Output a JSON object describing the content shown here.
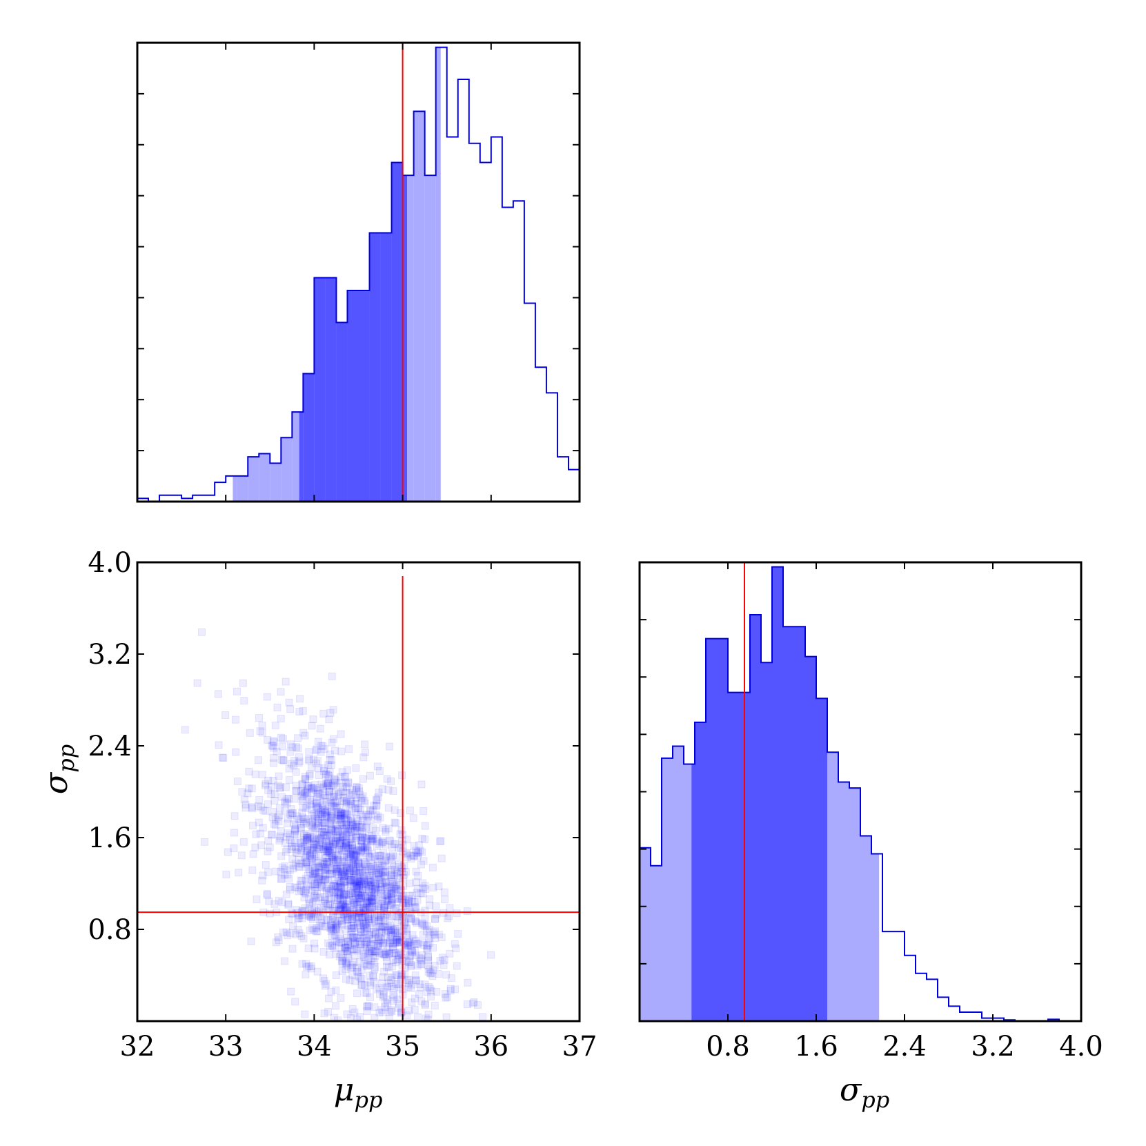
{
  "chart_data": [
    {
      "id": "mu_hist",
      "type": "histogram",
      "xlim": [
        32,
        37
      ],
      "ylim": [
        0,
        71
      ],
      "bin_width": 0.125,
      "bin_start": 32,
      "counts": [
        0.5,
        0,
        1,
        1,
        0.5,
        1,
        1,
        3,
        4,
        4,
        7,
        7.5,
        6,
        10,
        14,
        20,
        35,
        35,
        28,
        33,
        33,
        42,
        42,
        53,
        51,
        61,
        51,
        71,
        57,
        66,
        56,
        53,
        57,
        46,
        47,
        31,
        21,
        17,
        7,
        5,
        5,
        2,
        2.5,
        1,
        0.25,
        0,
        0,
        0,
        0,
        0,
        0,
        0,
        0,
        0,
        0,
        0,
        0,
        0,
        0,
        0
      ],
      "intervals": {
        "outer": [
          33.08,
          35.43
        ],
        "inner": [
          33.83,
          35.05
        ]
      },
      "truth": 35.0,
      "x_ticks": [
        32,
        33,
        34,
        35,
        36,
        37
      ],
      "y_tick_count": 8,
      "show_tick_labels": false
    },
    {
      "id": "sigma_hist",
      "type": "histogram",
      "xlim": [
        0,
        4
      ],
      "ylim": [
        0,
        76
      ],
      "bin_width": 0.1,
      "bin_start": 0,
      "counts": [
        29,
        26,
        44,
        46,
        43,
        50,
        64,
        64,
        55,
        55,
        68,
        60,
        76,
        66,
        66,
        61,
        54,
        45,
        40,
        39,
        31,
        28,
        15,
        15,
        11,
        8,
        7,
        4,
        2.5,
        1.5,
        1.5,
        0.5,
        0.5,
        0.2,
        0,
        0,
        0,
        0.3,
        0,
        0
      ],
      "intervals": {
        "outer": [
          0,
          2.17
        ],
        "inner": [
          0.47,
          1.7
        ]
      },
      "truth": 0.95,
      "x_ticks": [
        0.8,
        1.6,
        2.4,
        3.2,
        4.0
      ],
      "x_tick_labels": [
        "0.8",
        "1.6",
        "2.4",
        "3.2",
        "4.0"
      ],
      "y_tick_count": 7,
      "xlabel": "σ_pp"
    },
    {
      "id": "scatter",
      "type": "scatter",
      "xlim": [
        32,
        37
      ],
      "ylim": [
        0,
        4
      ],
      "truth": {
        "x": 35.0,
        "y": 0.95
      },
      "marker": "square",
      "color": "#0000ff",
      "alpha": 0.07,
      "point_count": 2000,
      "distribution": {
        "mean_x": 34.42,
        "sd_x": 0.5,
        "mean_y": 1.22,
        "sd_y": 0.6,
        "corr": -0.55
      },
      "x_ticks": [
        32,
        33,
        34,
        35,
        36,
        37
      ],
      "x_tick_labels": [
        "32",
        "33",
        "34",
        "35",
        "36",
        "37"
      ],
      "y_ticks": [
        0.8,
        1.6,
        2.4,
        3.2,
        4.0
      ],
      "y_tick_labels": [
        "0.8",
        "1.6",
        "2.4",
        "3.2",
        "4.0"
      ],
      "xlabel": "μ_pp",
      "ylabel": "σ_pp"
    }
  ],
  "labels": {
    "mu_main": "μ",
    "mu_sub": "pp",
    "sigma_main": "σ",
    "sigma_sub": "pp"
  },
  "colors": {
    "outline": "#0000dd",
    "inner_fill": "#5555ff",
    "outer_fill": "#aaaaff",
    "truth": "#ff0000",
    "frame": "#000000"
  }
}
